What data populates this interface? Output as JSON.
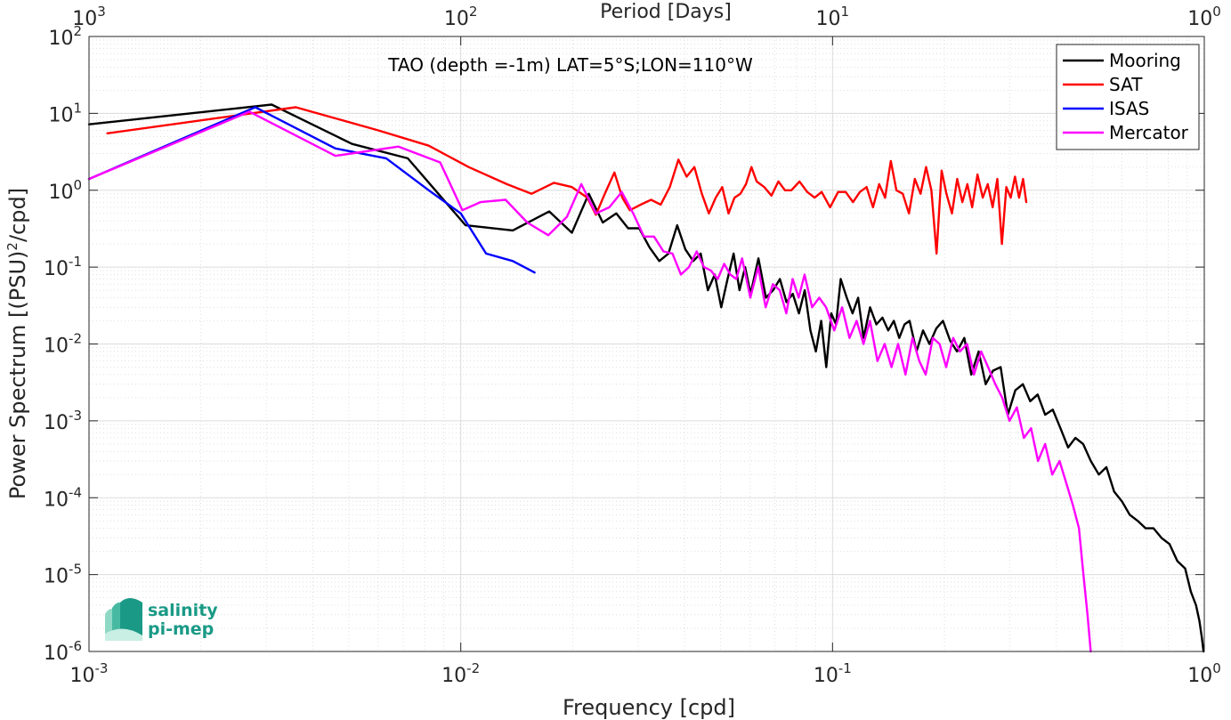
{
  "chart_data": {
    "type": "line",
    "title": "TAO (depth =-1m) LAT=5°S;LON=110°W",
    "xlabel": "Frequency [cpd]",
    "ylabel_main": "Power Spectrum [(PSU)",
    "ylabel_sup": "2",
    "ylabel_tail": "/cpd]",
    "top_xlabel": "Period [Days]",
    "x_scale": "log",
    "y_scale": "log",
    "xlim": [
      0.001,
      1
    ],
    "ylim": [
      1e-06,
      100
    ],
    "grid": true,
    "minor_grid": true,
    "legend_position": "top-right",
    "x_ticks": [
      {
        "value": 0.001,
        "base": "10",
        "exp": "-3"
      },
      {
        "value": 0.01,
        "base": "10",
        "exp": "-2"
      },
      {
        "value": 0.1,
        "base": "10",
        "exp": "-1"
      },
      {
        "value": 1,
        "base": "10",
        "exp": "0"
      }
    ],
    "top_ticks": [
      {
        "value": 0.001,
        "base": "10",
        "exp": "3"
      },
      {
        "value": 0.01,
        "base": "10",
        "exp": "2"
      },
      {
        "value": 0.1,
        "base": "10",
        "exp": "1"
      },
      {
        "value": 1,
        "base": "10",
        "exp": "0"
      }
    ],
    "y_ticks": [
      {
        "value": 100,
        "base": "10",
        "exp": "2"
      },
      {
        "value": 10,
        "base": "10",
        "exp": "1"
      },
      {
        "value": 1,
        "base": "10",
        "exp": "0"
      },
      {
        "value": 0.1,
        "base": "10",
        "exp": "-1"
      },
      {
        "value": 0.01,
        "base": "10",
        "exp": "-2"
      },
      {
        "value": 0.001,
        "base": "10",
        "exp": "-3"
      },
      {
        "value": 0.0001,
        "base": "10",
        "exp": "-4"
      },
      {
        "value": 1e-05,
        "base": "10",
        "exp": "-5"
      },
      {
        "value": 1e-06,
        "base": "10",
        "exp": "-6"
      }
    ],
    "series": [
      {
        "name": "Mooring",
        "color": "#000000",
        "points": [
          [
            0.001,
            7.2
          ],
          [
            0.0031,
            13
          ],
          [
            0.0051,
            4
          ],
          [
            0.0072,
            2.6
          ],
          [
            0.0103,
            0.35
          ],
          [
            0.0138,
            0.3
          ],
          [
            0.0173,
            0.53
          ],
          [
            0.0199,
            0.28
          ],
          [
            0.0221,
            0.9
          ],
          [
            0.0241,
            0.38
          ],
          [
            0.0262,
            0.5
          ],
          [
            0.0282,
            0.32
          ],
          [
            0.0302,
            0.32
          ],
          [
            0.0322,
            0.18
          ],
          [
            0.0342,
            0.12
          ],
          [
            0.0362,
            0.15
          ],
          [
            0.0382,
            0.35
          ],
          [
            0.0402,
            0.17
          ],
          [
            0.0422,
            0.12
          ],
          [
            0.0442,
            0.15
          ],
          [
            0.0462,
            0.05
          ],
          [
            0.0482,
            0.08
          ],
          [
            0.0502,
            0.03
          ],
          [
            0.0522,
            0.07
          ],
          [
            0.0542,
            0.15
          ],
          [
            0.0562,
            0.05
          ],
          [
            0.0582,
            0.1
          ],
          [
            0.0602,
            0.045
          ],
          [
            0.0632,
            0.13
          ],
          [
            0.0662,
            0.04
          ],
          [
            0.0692,
            0.05
          ],
          [
            0.0722,
            0.07
          ],
          [
            0.0752,
            0.035
          ],
          [
            0.0782,
            0.045
          ],
          [
            0.0812,
            0.025
          ],
          [
            0.0842,
            0.05
          ],
          [
            0.0872,
            0.015
          ],
          [
            0.0902,
            0.008
          ],
          [
            0.0932,
            0.02
          ],
          [
            0.0962,
            0.005
          ],
          [
            0.0992,
            0.025
          ],
          [
            0.1022,
            0.018
          ],
          [
            0.1052,
            0.07
          ],
          [
            0.1092,
            0.04
          ],
          [
            0.1132,
            0.025
          ],
          [
            0.1172,
            0.04
          ],
          [
            0.1212,
            0.012
          ],
          [
            0.1262,
            0.03
          ],
          [
            0.1312,
            0.018
          ],
          [
            0.1362,
            0.022
          ],
          [
            0.1412,
            0.015
          ],
          [
            0.1462,
            0.02
          ],
          [
            0.1512,
            0.012
          ],
          [
            0.1562,
            0.018
          ],
          [
            0.1612,
            0.02
          ],
          [
            0.1682,
            0.008
          ],
          [
            0.1752,
            0.015
          ],
          [
            0.1822,
            0.01
          ],
          [
            0.1902,
            0.016
          ],
          [
            0.1982,
            0.02
          ],
          [
            0.2072,
            0.011
          ],
          [
            0.2162,
            0.008
          ],
          [
            0.2262,
            0.012
          ],
          [
            0.2362,
            0.004
          ],
          [
            0.2472,
            0.008
          ],
          [
            0.2582,
            0.003
          ],
          [
            0.2702,
            0.0045
          ],
          [
            0.2832,
            0.005
          ],
          [
            0.2962,
            0.0012
          ],
          [
            0.3102,
            0.0025
          ],
          [
            0.3252,
            0.003
          ],
          [
            0.3402,
            0.0018
          ],
          [
            0.3562,
            0.0022
          ],
          [
            0.3732,
            0.0012
          ],
          [
            0.3912,
            0.0014
          ],
          [
            0.4102,
            0.0008
          ],
          [
            0.4302,
            0.00045
          ],
          [
            0.4502,
            0.0006
          ],
          [
            0.4722,
            0.0005
          ],
          [
            0.4952,
            0.0003
          ],
          [
            0.5202,
            0.0002
          ],
          [
            0.5452,
            0.00025
          ],
          [
            0.5722,
            0.00012
          ],
          [
            0.6002,
            9e-05
          ],
          [
            0.6302,
            6e-05
          ],
          [
            0.6622,
            5e-05
          ],
          [
            0.6952,
            4e-05
          ],
          [
            0.7302,
            4e-05
          ],
          [
            0.7672,
            3e-05
          ],
          [
            0.8062,
            2.5e-05
          ],
          [
            0.8462,
            1.5e-05
          ],
          [
            0.8882,
            1.2e-05
          ],
          [
            0.9202,
            6e-06
          ],
          [
            0.9502,
            4e-06
          ],
          [
            0.9702,
            2.5e-06
          ],
          [
            0.985,
            1.5e-06
          ],
          [
            0.995,
            1e-06
          ]
        ]
      },
      {
        "name": "SAT",
        "color": "#ff0000",
        "points": [
          [
            0.00112,
            5.5
          ],
          [
            0.0036,
            12
          ],
          [
            0.006,
            6
          ],
          [
            0.0082,
            3.8
          ],
          [
            0.0105,
            2
          ],
          [
            0.0133,
            1.2
          ],
          [
            0.0155,
            0.9
          ],
          [
            0.0178,
            1.25
          ],
          [
            0.0199,
            1.1
          ],
          [
            0.0219,
            0.8
          ],
          [
            0.0231,
            0.48
          ],
          [
            0.0244,
            0.9
          ],
          [
            0.0259,
            1.7
          ],
          [
            0.0272,
            0.8
          ],
          [
            0.0285,
            0.55
          ],
          [
            0.0305,
            0.65
          ],
          [
            0.0325,
            0.75
          ],
          [
            0.0345,
            0.65
          ],
          [
            0.0365,
            1.1
          ],
          [
            0.0385,
            2.5
          ],
          [
            0.0405,
            1.5
          ],
          [
            0.0425,
            2
          ],
          [
            0.0445,
            0.9
          ],
          [
            0.0465,
            0.5
          ],
          [
            0.0485,
            0.8
          ],
          [
            0.0505,
            1.1
          ],
          [
            0.0525,
            0.5
          ],
          [
            0.0545,
            0.8
          ],
          [
            0.0565,
            0.9
          ],
          [
            0.0585,
            1.2
          ],
          [
            0.0605,
            2
          ],
          [
            0.0625,
            1.3
          ],
          [
            0.0655,
            1.1
          ],
          [
            0.0685,
            0.85
          ],
          [
            0.0715,
            1.3
          ],
          [
            0.0745,
            1
          ],
          [
            0.0775,
            1
          ],
          [
            0.0815,
            1.3
          ],
          [
            0.0855,
            0.95
          ],
          [
            0.0895,
            0.8
          ],
          [
            0.0935,
            0.95
          ],
          [
            0.0985,
            0.6
          ],
          [
            0.1035,
            0.95
          ],
          [
            0.1085,
            0.95
          ],
          [
            0.1135,
            0.7
          ],
          [
            0.1185,
            0.95
          ],
          [
            0.1235,
            1.1
          ],
          [
            0.1285,
            0.6
          ],
          [
            0.1335,
            1.2
          ],
          [
            0.1385,
            0.8
          ],
          [
            0.1435,
            2.4
          ],
          [
            0.1485,
            1
          ],
          [
            0.1545,
            0.9
          ],
          [
            0.1605,
            0.5
          ],
          [
            0.1665,
            1.4
          ],
          [
            0.1725,
            0.9
          ],
          [
            0.1785,
            2
          ],
          [
            0.1845,
            1
          ],
          [
            0.1905,
            0.15
          ],
          [
            0.1965,
            1.8
          ],
          [
            0.2025,
            0.9
          ],
          [
            0.2095,
            0.5
          ],
          [
            0.2165,
            1.4
          ],
          [
            0.2235,
            0.7
          ],
          [
            0.2305,
            1.2
          ],
          [
            0.2375,
            0.6
          ],
          [
            0.2455,
            1.6
          ],
          [
            0.2535,
            0.8
          ],
          [
            0.2615,
            1.2
          ],
          [
            0.2695,
            0.6
          ],
          [
            0.2775,
            1.4
          ],
          [
            0.2855,
            0.2
          ],
          [
            0.2935,
            1.1
          ],
          [
            0.3015,
            0.8
          ],
          [
            0.3095,
            1.5
          ],
          [
            0.3175,
            0.8
          ],
          [
            0.3255,
            1.4
          ],
          [
            0.332,
            0.7
          ]
        ]
      },
      {
        "name": "ISAS",
        "color": "#0000ff",
        "points": [
          [
            0.001,
            1.4
          ],
          [
            0.0028,
            12
          ],
          [
            0.0046,
            3.5
          ],
          [
            0.0063,
            2.6
          ],
          [
            0.0082,
            1
          ],
          [
            0.01,
            0.5
          ],
          [
            0.0117,
            0.15
          ],
          [
            0.0138,
            0.12
          ],
          [
            0.0158,
            0.085
          ]
        ]
      },
      {
        "name": "Mercator",
        "color": "#ff00ff",
        "points": [
          [
            0.001,
            1.4
          ],
          [
            0.0027,
            10.5
          ],
          [
            0.0046,
            2.8
          ],
          [
            0.0068,
            3.7
          ],
          [
            0.0088,
            2.3
          ],
          [
            0.0101,
            0.55
          ],
          [
            0.0113,
            0.7
          ],
          [
            0.0132,
            0.75
          ],
          [
            0.0151,
            0.38
          ],
          [
            0.0172,
            0.26
          ],
          [
            0.0193,
            0.45
          ],
          [
            0.0211,
            1.2
          ],
          [
            0.0231,
            0.5
          ],
          [
            0.0251,
            0.6
          ],
          [
            0.0271,
            0.95
          ],
          [
            0.0291,
            0.5
          ],
          [
            0.0311,
            0.25
          ],
          [
            0.0331,
            0.25
          ],
          [
            0.0351,
            0.16
          ],
          [
            0.0371,
            0.15
          ],
          [
            0.0391,
            0.08
          ],
          [
            0.0411,
            0.1
          ],
          [
            0.0431,
            0.16
          ],
          [
            0.0451,
            0.1
          ],
          [
            0.0471,
            0.09
          ],
          [
            0.0491,
            0.07
          ],
          [
            0.0511,
            0.11
          ],
          [
            0.0531,
            0.08
          ],
          [
            0.0551,
            0.07
          ],
          [
            0.0571,
            0.13
          ],
          [
            0.0601,
            0.04
          ],
          [
            0.0631,
            0.1
          ],
          [
            0.0661,
            0.03
          ],
          [
            0.0691,
            0.06
          ],
          [
            0.0721,
            0.05
          ],
          [
            0.0751,
            0.025
          ],
          [
            0.0781,
            0.07
          ],
          [
            0.0811,
            0.04
          ],
          [
            0.0841,
            0.08
          ],
          [
            0.0881,
            0.03
          ],
          [
            0.0921,
            0.04
          ],
          [
            0.0961,
            0.03
          ],
          [
            0.1011,
            0.015
          ],
          [
            0.1061,
            0.03
          ],
          [
            0.1111,
            0.012
          ],
          [
            0.1161,
            0.02
          ],
          [
            0.1211,
            0.01
          ],
          [
            0.1261,
            0.02
          ],
          [
            0.1321,
            0.006
          ],
          [
            0.1381,
            0.01
          ],
          [
            0.1441,
            0.005
          ],
          [
            0.1501,
            0.01
          ],
          [
            0.1571,
            0.004
          ],
          [
            0.1641,
            0.012
          ],
          [
            0.1711,
            0.006
          ],
          [
            0.1781,
            0.004
          ],
          [
            0.1861,
            0.012
          ],
          [
            0.1941,
            0.01
          ],
          [
            0.2021,
            0.005
          ],
          [
            0.2111,
            0.012
          ],
          [
            0.2201,
            0.008
          ],
          [
            0.2301,
            0.01
          ],
          [
            0.2401,
            0.004
          ],
          [
            0.2511,
            0.008
          ],
          [
            0.2621,
            0.005
          ],
          [
            0.2741,
            0.003
          ],
          [
            0.2861,
            0.002
          ],
          [
            0.2991,
            0.001
          ],
          [
            0.3131,
            0.0015
          ],
          [
            0.3271,
            0.0006
          ],
          [
            0.3421,
            0.0008
          ],
          [
            0.3571,
            0.0003
          ],
          [
            0.3731,
            0.0005
          ],
          [
            0.3901,
            0.0002
          ],
          [
            0.4081,
            0.0003
          ],
          [
            0.4261,
            0.00015
          ],
          [
            0.4431,
            8e-05
          ],
          [
            0.4601,
            4e-05
          ],
          [
            0.4731,
            1e-05
          ],
          [
            0.4851,
            3e-06
          ],
          [
            0.495,
            1e-06
          ]
        ]
      }
    ]
  },
  "logo": {
    "line1": "salinity",
    "line2": "pi-mep",
    "color": "#1a9a86"
  }
}
